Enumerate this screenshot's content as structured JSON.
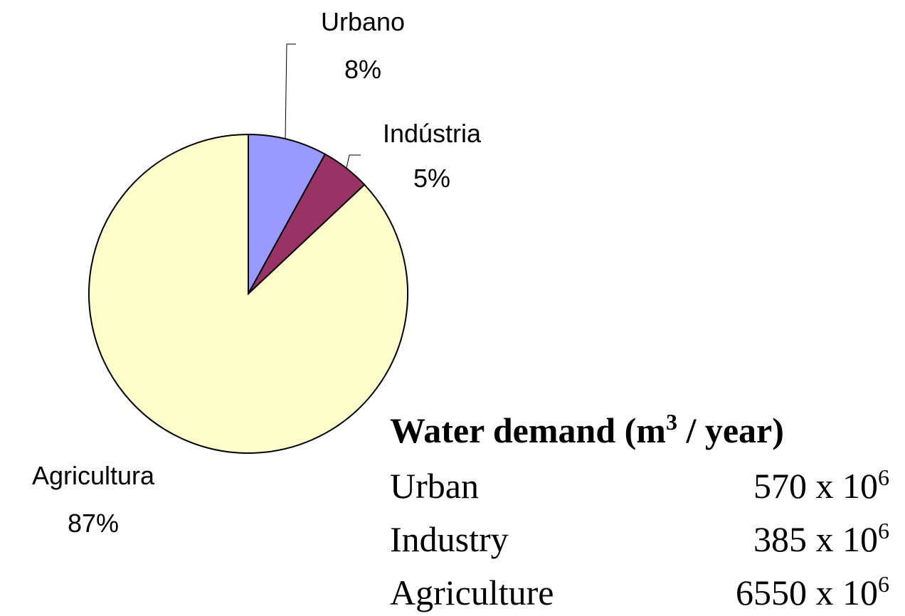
{
  "chart_data": {
    "type": "pie",
    "categories": [
      "Urbano",
      "Indústria",
      "Agricultura"
    ],
    "values": [
      8,
      5,
      87
    ],
    "value_labels": [
      "8%",
      "5%",
      "87%"
    ],
    "colors": [
      "#9999ff",
      "#993366",
      "#ffffcc"
    ]
  },
  "table": {
    "title": [
      "Water demand (m",
      "3",
      " / year)"
    ],
    "rows": [
      {
        "label": "Urban",
        "value": "570 x 10",
        "exponent": "6"
      },
      {
        "label": "Industry",
        "value": "385 x 10",
        "exponent": "6"
      },
      {
        "label": "Agriculture",
        "value": "6550 x 10",
        "exponent": "6"
      }
    ]
  }
}
